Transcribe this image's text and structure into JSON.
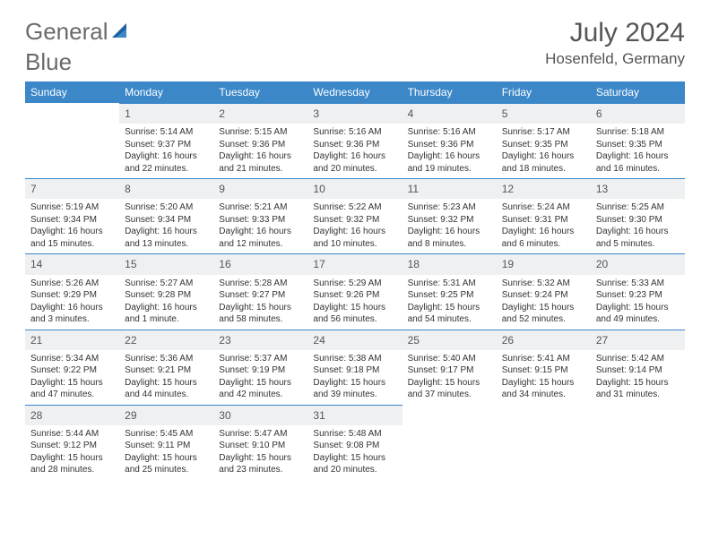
{
  "brand": {
    "part1": "General",
    "part2": "Blue",
    "accent": "#3b87c8"
  },
  "title": "July 2024",
  "location": "Hosenfeld, Germany",
  "columns": [
    "Sunday",
    "Monday",
    "Tuesday",
    "Wednesday",
    "Thursday",
    "Friday",
    "Saturday"
  ],
  "colors": {
    "header_bg": "#3b87c8",
    "header_text": "#ffffff",
    "daynum_bg": "#eef0f2",
    "daynum_border": "#3b87c8",
    "text": "#333333",
    "title_text": "#555555"
  },
  "weeks": [
    [
      {
        "empty": true
      },
      {
        "n": "1",
        "sr": "Sunrise: 5:14 AM",
        "ss": "Sunset: 9:37 PM",
        "d1": "Daylight: 16 hours",
        "d2": "and 22 minutes."
      },
      {
        "n": "2",
        "sr": "Sunrise: 5:15 AM",
        "ss": "Sunset: 9:36 PM",
        "d1": "Daylight: 16 hours",
        "d2": "and 21 minutes."
      },
      {
        "n": "3",
        "sr": "Sunrise: 5:16 AM",
        "ss": "Sunset: 9:36 PM",
        "d1": "Daylight: 16 hours",
        "d2": "and 20 minutes."
      },
      {
        "n": "4",
        "sr": "Sunrise: 5:16 AM",
        "ss": "Sunset: 9:36 PM",
        "d1": "Daylight: 16 hours",
        "d2": "and 19 minutes."
      },
      {
        "n": "5",
        "sr": "Sunrise: 5:17 AM",
        "ss": "Sunset: 9:35 PM",
        "d1": "Daylight: 16 hours",
        "d2": "and 18 minutes."
      },
      {
        "n": "6",
        "sr": "Sunrise: 5:18 AM",
        "ss": "Sunset: 9:35 PM",
        "d1": "Daylight: 16 hours",
        "d2": "and 16 minutes."
      }
    ],
    [
      {
        "n": "7",
        "sr": "Sunrise: 5:19 AM",
        "ss": "Sunset: 9:34 PM",
        "d1": "Daylight: 16 hours",
        "d2": "and 15 minutes."
      },
      {
        "n": "8",
        "sr": "Sunrise: 5:20 AM",
        "ss": "Sunset: 9:34 PM",
        "d1": "Daylight: 16 hours",
        "d2": "and 13 minutes."
      },
      {
        "n": "9",
        "sr": "Sunrise: 5:21 AM",
        "ss": "Sunset: 9:33 PM",
        "d1": "Daylight: 16 hours",
        "d2": "and 12 minutes."
      },
      {
        "n": "10",
        "sr": "Sunrise: 5:22 AM",
        "ss": "Sunset: 9:32 PM",
        "d1": "Daylight: 16 hours",
        "d2": "and 10 minutes."
      },
      {
        "n": "11",
        "sr": "Sunrise: 5:23 AM",
        "ss": "Sunset: 9:32 PM",
        "d1": "Daylight: 16 hours",
        "d2": "and 8 minutes."
      },
      {
        "n": "12",
        "sr": "Sunrise: 5:24 AM",
        "ss": "Sunset: 9:31 PM",
        "d1": "Daylight: 16 hours",
        "d2": "and 6 minutes."
      },
      {
        "n": "13",
        "sr": "Sunrise: 5:25 AM",
        "ss": "Sunset: 9:30 PM",
        "d1": "Daylight: 16 hours",
        "d2": "and 5 minutes."
      }
    ],
    [
      {
        "n": "14",
        "sr": "Sunrise: 5:26 AM",
        "ss": "Sunset: 9:29 PM",
        "d1": "Daylight: 16 hours",
        "d2": "and 3 minutes."
      },
      {
        "n": "15",
        "sr": "Sunrise: 5:27 AM",
        "ss": "Sunset: 9:28 PM",
        "d1": "Daylight: 16 hours",
        "d2": "and 1 minute."
      },
      {
        "n": "16",
        "sr": "Sunrise: 5:28 AM",
        "ss": "Sunset: 9:27 PM",
        "d1": "Daylight: 15 hours",
        "d2": "and 58 minutes."
      },
      {
        "n": "17",
        "sr": "Sunrise: 5:29 AM",
        "ss": "Sunset: 9:26 PM",
        "d1": "Daylight: 15 hours",
        "d2": "and 56 minutes."
      },
      {
        "n": "18",
        "sr": "Sunrise: 5:31 AM",
        "ss": "Sunset: 9:25 PM",
        "d1": "Daylight: 15 hours",
        "d2": "and 54 minutes."
      },
      {
        "n": "19",
        "sr": "Sunrise: 5:32 AM",
        "ss": "Sunset: 9:24 PM",
        "d1": "Daylight: 15 hours",
        "d2": "and 52 minutes."
      },
      {
        "n": "20",
        "sr": "Sunrise: 5:33 AM",
        "ss": "Sunset: 9:23 PM",
        "d1": "Daylight: 15 hours",
        "d2": "and 49 minutes."
      }
    ],
    [
      {
        "n": "21",
        "sr": "Sunrise: 5:34 AM",
        "ss": "Sunset: 9:22 PM",
        "d1": "Daylight: 15 hours",
        "d2": "and 47 minutes."
      },
      {
        "n": "22",
        "sr": "Sunrise: 5:36 AM",
        "ss": "Sunset: 9:21 PM",
        "d1": "Daylight: 15 hours",
        "d2": "and 44 minutes."
      },
      {
        "n": "23",
        "sr": "Sunrise: 5:37 AM",
        "ss": "Sunset: 9:19 PM",
        "d1": "Daylight: 15 hours",
        "d2": "and 42 minutes."
      },
      {
        "n": "24",
        "sr": "Sunrise: 5:38 AM",
        "ss": "Sunset: 9:18 PM",
        "d1": "Daylight: 15 hours",
        "d2": "and 39 minutes."
      },
      {
        "n": "25",
        "sr": "Sunrise: 5:40 AM",
        "ss": "Sunset: 9:17 PM",
        "d1": "Daylight: 15 hours",
        "d2": "and 37 minutes."
      },
      {
        "n": "26",
        "sr": "Sunrise: 5:41 AM",
        "ss": "Sunset: 9:15 PM",
        "d1": "Daylight: 15 hours",
        "d2": "and 34 minutes."
      },
      {
        "n": "27",
        "sr": "Sunrise: 5:42 AM",
        "ss": "Sunset: 9:14 PM",
        "d1": "Daylight: 15 hours",
        "d2": "and 31 minutes."
      }
    ],
    [
      {
        "n": "28",
        "sr": "Sunrise: 5:44 AM",
        "ss": "Sunset: 9:12 PM",
        "d1": "Daylight: 15 hours",
        "d2": "and 28 minutes."
      },
      {
        "n": "29",
        "sr": "Sunrise: 5:45 AM",
        "ss": "Sunset: 9:11 PM",
        "d1": "Daylight: 15 hours",
        "d2": "and 25 minutes."
      },
      {
        "n": "30",
        "sr": "Sunrise: 5:47 AM",
        "ss": "Sunset: 9:10 PM",
        "d1": "Daylight: 15 hours",
        "d2": "and 23 minutes."
      },
      {
        "n": "31",
        "sr": "Sunrise: 5:48 AM",
        "ss": "Sunset: 9:08 PM",
        "d1": "Daylight: 15 hours",
        "d2": "and 20 minutes."
      },
      {
        "empty": true
      },
      {
        "empty": true
      },
      {
        "empty": true
      }
    ]
  ]
}
